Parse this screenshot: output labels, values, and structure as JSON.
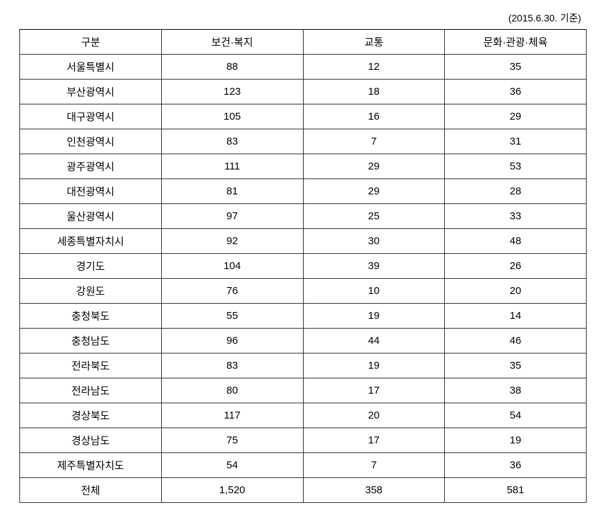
{
  "caption": "(2015.6.30. 기준)",
  "columns": [
    "구분",
    "보건·복지",
    "교통",
    "문화·관광·체육"
  ],
  "rows": [
    [
      "서울특별시",
      "88",
      "12",
      "35"
    ],
    [
      "부산광역시",
      "123",
      "18",
      "36"
    ],
    [
      "대구광역시",
      "105",
      "16",
      "29"
    ],
    [
      "인천광역시",
      "83",
      "7",
      "31"
    ],
    [
      "광주광역시",
      "111",
      "29",
      "53"
    ],
    [
      "대전광역시",
      "81",
      "29",
      "28"
    ],
    [
      "울산광역시",
      "97",
      "25",
      "33"
    ],
    [
      "세종특별자치시",
      "92",
      "30",
      "48"
    ],
    [
      "경기도",
      "104",
      "39",
      "26"
    ],
    [
      "강원도",
      "76",
      "10",
      "20"
    ],
    [
      "충청북도",
      "55",
      "19",
      "14"
    ],
    [
      "충청남도",
      "96",
      "44",
      "46"
    ],
    [
      "전라북도",
      "83",
      "19",
      "35"
    ],
    [
      "전라남도",
      "80",
      "17",
      "38"
    ],
    [
      "경상북도",
      "117",
      "20",
      "54"
    ],
    [
      "경상남도",
      "75",
      "17",
      "19"
    ],
    [
      "제주특별자치도",
      "54",
      "7",
      "36"
    ],
    [
      "전체",
      "1,520",
      "358",
      "581"
    ]
  ]
}
